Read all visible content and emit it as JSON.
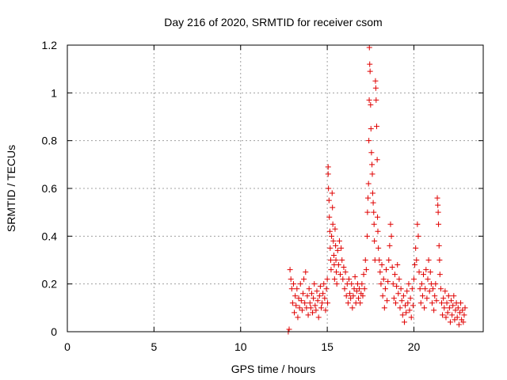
{
  "chart_data": {
    "type": "scatter",
    "title": "Day 216 of 2020, SRMTID for receiver csom",
    "xlabel": "GPS time / hours",
    "ylabel": "SRMTID / TECUs",
    "xlim": [
      0,
      24
    ],
    "ylim": [
      0,
      1.2
    ],
    "x_ticks": [
      0,
      5,
      10,
      15,
      20
    ],
    "x_tick_labels": [
      "0",
      "5",
      "10",
      "15",
      "20"
    ],
    "y_ticks": [
      0,
      0.2,
      0.4,
      0.6,
      0.8,
      1.0,
      1.2
    ],
    "y_tick_labels": [
      "0",
      "0.2",
      "0.4",
      "0.6",
      "0.8",
      "1",
      "1.2"
    ],
    "grid": true,
    "marker": "plus",
    "color": "#e00000",
    "series": [
      {
        "name": "csom",
        "points": [
          [
            12.75,
            0.0
          ],
          [
            12.8,
            0.01
          ],
          [
            12.85,
            0.26
          ],
          [
            12.9,
            0.22
          ],
          [
            12.95,
            0.18
          ],
          [
            13.0,
            0.12
          ],
          [
            13.05,
            0.2
          ],
          [
            13.1,
            0.08
          ],
          [
            13.15,
            0.15
          ],
          [
            13.2,
            0.11
          ],
          [
            13.25,
            0.18
          ],
          [
            13.3,
            0.06
          ],
          [
            13.35,
            0.14
          ],
          [
            13.4,
            0.1
          ],
          [
            13.45,
            0.2
          ],
          [
            13.5,
            0.13
          ],
          [
            13.55,
            0.09
          ],
          [
            13.6,
            0.16
          ],
          [
            13.65,
            0.22
          ],
          [
            13.7,
            0.12
          ],
          [
            13.75,
            0.25
          ],
          [
            13.8,
            0.1
          ],
          [
            13.85,
            0.15
          ],
          [
            13.9,
            0.07
          ],
          [
            13.95,
            0.18
          ],
          [
            14.0,
            0.12
          ],
          [
            14.05,
            0.1
          ],
          [
            14.1,
            0.16
          ],
          [
            14.15,
            0.08
          ],
          [
            14.2,
            0.14
          ],
          [
            14.25,
            0.2
          ],
          [
            14.3,
            0.11
          ],
          [
            14.35,
            0.09
          ],
          [
            14.4,
            0.17
          ],
          [
            14.45,
            0.13
          ],
          [
            14.5,
            0.06
          ],
          [
            14.55,
            0.15
          ],
          [
            14.6,
            0.19
          ],
          [
            14.65,
            0.1
          ],
          [
            14.7,
            0.12
          ],
          [
            14.75,
            0.16
          ],
          [
            14.8,
            0.2
          ],
          [
            14.85,
            0.14
          ],
          [
            14.9,
            0.09
          ],
          [
            14.95,
            0.18
          ],
          [
            15.0,
            0.22
          ],
          [
            15.02,
            0.12
          ],
          [
            15.05,
            0.69
          ],
          [
            15.05,
            0.66
          ],
          [
            15.07,
            0.6
          ],
          [
            15.1,
            0.55
          ],
          [
            15.12,
            0.48
          ],
          [
            15.15,
            0.42
          ],
          [
            15.17,
            0.35
          ],
          [
            15.2,
            0.3
          ],
          [
            15.22,
            0.26
          ],
          [
            15.25,
            0.4
          ],
          [
            15.28,
            0.58
          ],
          [
            15.3,
            0.52
          ],
          [
            15.32,
            0.45
          ],
          [
            15.35,
            0.38
          ],
          [
            15.38,
            0.32
          ],
          [
            15.4,
            0.28
          ],
          [
            15.42,
            0.22
          ],
          [
            15.45,
            0.43
          ],
          [
            15.48,
            0.36
          ],
          [
            15.5,
            0.3
          ],
          [
            15.52,
            0.25
          ],
          [
            15.55,
            0.2
          ],
          [
            15.6,
            0.34
          ],
          [
            15.65,
            0.28
          ],
          [
            15.7,
            0.38
          ],
          [
            15.75,
            0.24
          ],
          [
            15.8,
            0.35
          ],
          [
            15.85,
            0.3
          ],
          [
            15.9,
            0.22
          ],
          [
            15.95,
            0.27
          ],
          [
            16.0,
            0.18
          ],
          [
            16.05,
            0.25
          ],
          [
            16.1,
            0.15
          ],
          [
            16.15,
            0.2
          ],
          [
            16.2,
            0.12
          ],
          [
            16.25,
            0.22
          ],
          [
            16.3,
            0.16
          ],
          [
            16.35,
            0.14
          ],
          [
            16.4,
            0.2
          ],
          [
            16.45,
            0.1
          ],
          [
            16.5,
            0.15
          ],
          [
            16.55,
            0.18
          ],
          [
            16.6,
            0.23
          ],
          [
            16.65,
            0.12
          ],
          [
            16.7,
            0.17
          ],
          [
            16.75,
            0.2
          ],
          [
            16.8,
            0.14
          ],
          [
            16.85,
            0.18
          ],
          [
            16.9,
            0.12
          ],
          [
            16.95,
            0.16
          ],
          [
            17.0,
            0.2
          ],
          [
            17.05,
            0.15
          ],
          [
            17.1,
            0.24
          ],
          [
            17.15,
            0.18
          ],
          [
            17.2,
            0.3
          ],
          [
            17.25,
            0.26
          ],
          [
            17.3,
            0.4
          ],
          [
            17.32,
            0.5
          ],
          [
            17.35,
            0.56
          ],
          [
            17.38,
            0.62
          ],
          [
            17.4,
            0.8
          ],
          [
            17.42,
            0.97
          ],
          [
            17.43,
            1.19
          ],
          [
            17.45,
            1.12
          ],
          [
            17.47,
            1.09
          ],
          [
            17.5,
            0.95
          ],
          [
            17.52,
            0.85
          ],
          [
            17.55,
            0.75
          ],
          [
            17.58,
            0.7
          ],
          [
            17.6,
            0.66
          ],
          [
            17.62,
            0.58
          ],
          [
            17.65,
            0.54
          ],
          [
            17.68,
            0.5
          ],
          [
            17.7,
            0.45
          ],
          [
            17.72,
            0.38
          ],
          [
            17.75,
            0.3
          ],
          [
            17.78,
            1.05
          ],
          [
            17.8,
            1.02
          ],
          [
            17.82,
            0.97
          ],
          [
            17.85,
            0.86
          ],
          [
            17.88,
            0.72
          ],
          [
            17.9,
            0.48
          ],
          [
            17.92,
            0.42
          ],
          [
            17.95,
            0.35
          ],
          [
            18.0,
            0.3
          ],
          [
            18.05,
            0.25
          ],
          [
            18.1,
            0.2
          ],
          [
            18.15,
            0.28
          ],
          [
            18.2,
            0.15
          ],
          [
            18.25,
            0.22
          ],
          [
            18.3,
            0.1
          ],
          [
            18.35,
            0.18
          ],
          [
            18.4,
            0.26
          ],
          [
            18.45,
            0.13
          ],
          [
            18.5,
            0.21
          ],
          [
            18.55,
            0.3
          ],
          [
            18.6,
            0.36
          ],
          [
            18.65,
            0.45
          ],
          [
            18.7,
            0.4
          ],
          [
            18.75,
            0.27
          ],
          [
            18.8,
            0.2
          ],
          [
            18.85,
            0.14
          ],
          [
            18.9,
            0.24
          ],
          [
            18.95,
            0.12
          ],
          [
            19.0,
            0.19
          ],
          [
            19.05,
            0.28
          ],
          [
            19.1,
            0.16
          ],
          [
            19.15,
            0.22
          ],
          [
            19.2,
            0.1
          ],
          [
            19.25,
            0.18
          ],
          [
            19.3,
            0.13
          ],
          [
            19.35,
            0.07
          ],
          [
            19.4,
            0.15
          ],
          [
            19.45,
            0.04
          ],
          [
            19.5,
            0.11
          ],
          [
            19.55,
            0.08
          ],
          [
            19.6,
            0.17
          ],
          [
            19.65,
            0.12
          ],
          [
            19.7,
            0.2
          ],
          [
            19.75,
            0.09
          ],
          [
            19.8,
            0.14
          ],
          [
            19.85,
            0.06
          ],
          [
            19.9,
            0.18
          ],
          [
            19.95,
            0.11
          ],
          [
            20.0,
            0.22
          ],
          [
            20.05,
            0.28
          ],
          [
            20.1,
            0.35
          ],
          [
            20.15,
            0.3
          ],
          [
            20.2,
            0.45
          ],
          [
            20.25,
            0.4
          ],
          [
            20.3,
            0.25
          ],
          [
            20.35,
            0.18
          ],
          [
            20.4,
            0.12
          ],
          [
            20.45,
            0.2
          ],
          [
            20.5,
            0.15
          ],
          [
            20.55,
            0.24
          ],
          [
            20.6,
            0.1
          ],
          [
            20.65,
            0.18
          ],
          [
            20.7,
            0.26
          ],
          [
            20.75,
            0.14
          ],
          [
            20.8,
            0.22
          ],
          [
            20.85,
            0.3
          ],
          [
            20.9,
            0.17
          ],
          [
            20.95,
            0.25
          ],
          [
            21.0,
            0.2
          ],
          [
            21.05,
            0.12
          ],
          [
            21.1,
            0.18
          ],
          [
            21.15,
            0.09
          ],
          [
            21.2,
            0.15
          ],
          [
            21.25,
            0.2
          ],
          [
            21.3,
            0.13
          ],
          [
            21.35,
            0.56
          ],
          [
            21.38,
            0.53
          ],
          [
            21.4,
            0.5
          ],
          [
            21.42,
            0.45
          ],
          [
            21.45,
            0.36
          ],
          [
            21.48,
            0.3
          ],
          [
            21.5,
            0.24
          ],
          [
            21.55,
            0.18
          ],
          [
            21.6,
            0.12
          ],
          [
            21.65,
            0.07
          ],
          [
            21.7,
            0.14
          ],
          [
            21.75,
            0.1
          ],
          [
            21.8,
            0.17
          ],
          [
            21.85,
            0.06
          ],
          [
            21.9,
            0.12
          ],
          [
            21.95,
            0.08
          ],
          [
            22.0,
            0.15
          ],
          [
            22.05,
            0.1
          ],
          [
            22.1,
            0.04
          ],
          [
            22.15,
            0.13
          ],
          [
            22.2,
            0.07
          ],
          [
            22.25,
            0.11
          ],
          [
            22.3,
            0.15
          ],
          [
            22.35,
            0.05
          ],
          [
            22.4,
            0.09
          ],
          [
            22.45,
            0.12
          ],
          [
            22.5,
            0.06
          ],
          [
            22.55,
            0.1
          ],
          [
            22.6,
            0.03
          ],
          [
            22.65,
            0.08
          ],
          [
            22.7,
            0.12
          ],
          [
            22.75,
            0.05
          ],
          [
            22.8,
            0.09
          ],
          [
            22.85,
            0.04
          ],
          [
            22.9,
            0.07
          ],
          [
            22.95,
            0.1
          ]
        ]
      }
    ]
  }
}
